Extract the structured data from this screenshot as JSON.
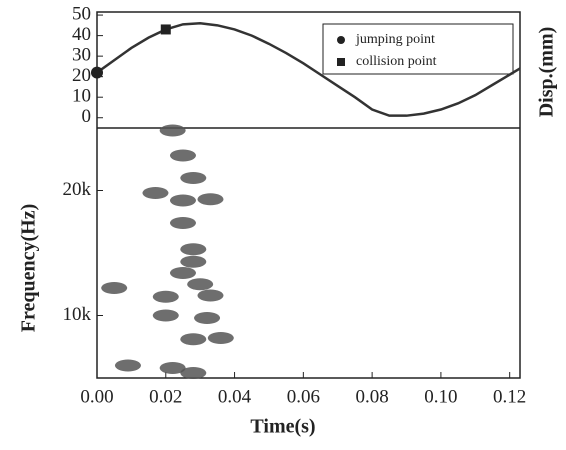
{
  "chart_data": [
    {
      "type": "line",
      "y_label": "Disp.(mm)",
      "color": "#333333",
      "x": [
        0,
        0.005,
        0.01,
        0.015,
        0.02,
        0.025,
        0.03,
        0.035,
        0.04,
        0.045,
        0.05,
        0.055,
        0.06,
        0.065,
        0.07,
        0.075,
        0.08,
        0.085,
        0.09,
        0.095,
        0.1,
        0.105,
        0.11,
        0.115,
        0.12,
        0.123
      ],
      "values": [
        22,
        28,
        34,
        39,
        43,
        45.5,
        46,
        45,
        43,
        40,
        36,
        31.5,
        26.5,
        21,
        15.5,
        10,
        4,
        1,
        1,
        2,
        4,
        7,
        11,
        16,
        21,
        24
      ],
      "markers": [
        {
          "name": "jumping point",
          "x": 0,
          "value": 22,
          "shape": "circle"
        },
        {
          "name": "collision point",
          "x": 0.02,
          "value": 43,
          "shape": "square"
        }
      ],
      "legend": "upper right",
      "xlim": [
        0,
        0.123
      ],
      "ylim": [
        -5,
        51.5
      ],
      "yticks": [
        0,
        10,
        20,
        30,
        40,
        50
      ]
    },
    {
      "type": "spectrogram",
      "x_label": "Time(s)",
      "y_label": "Frequency(Hz)",
      "color": "#555555",
      "x": [
        0.022,
        0.025,
        0.028,
        0.017,
        0.025,
        0.033,
        0.025,
        0.028,
        0.028,
        0.025,
        0.03,
        0.033,
        0.02,
        0.02,
        0.032,
        0.028,
        0.036,
        0.009,
        0.022,
        0.028,
        0.005
      ],
      "y": [
        24800,
        22800,
        21000,
        19800,
        19200,
        19300,
        17400,
        15300,
        14300,
        13400,
        12500,
        11600,
        11500,
        10000,
        9800,
        8100,
        8200,
        6000,
        5800,
        5400,
        12200
      ],
      "xlim": [
        0,
        0.123
      ],
      "ylim": [
        5000,
        25000
      ],
      "xticks": [
        {
          "value": 0,
          "label": "0.00"
        },
        0.02,
        0.04,
        0.06,
        0.08,
        {
          "value": 0.1,
          "label": "0.10"
        },
        0.12
      ],
      "yticks": [
        {
          "value": 10000,
          "label": "10k"
        },
        {
          "value": 20000,
          "label": "20k"
        }
      ]
    }
  ]
}
